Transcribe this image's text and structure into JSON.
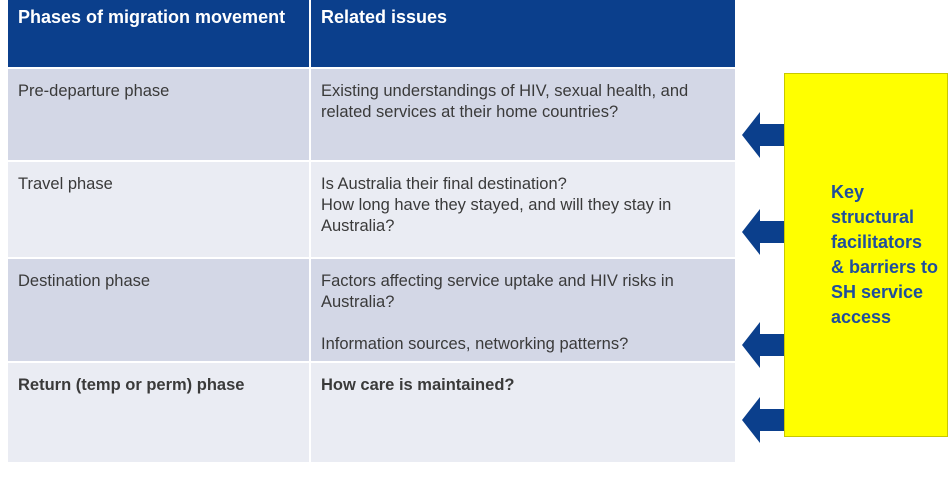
{
  "table": {
    "header": [
      "Phases of migration movement",
      "Related issues"
    ],
    "rows": [
      [
        "Pre-departure phase",
        [
          "Existing understandings of HIV, sexual health, and related services at their home countries?"
        ]
      ],
      [
        "Travel phase",
        [
          "Is Australia their final destination?",
          "How long have they stayed, and will they stay in Australia?"
        ]
      ],
      [
        "Destination phase",
        [
          "Factors affecting service uptake and HIV risks in Australia?",
          "Information sources, networking patterns?"
        ]
      ],
      [
        "Return (temp or perm) phase",
        [
          "How care is maintained?"
        ]
      ]
    ]
  },
  "callout": "Key structural facilitators & barriers to SH service access"
}
